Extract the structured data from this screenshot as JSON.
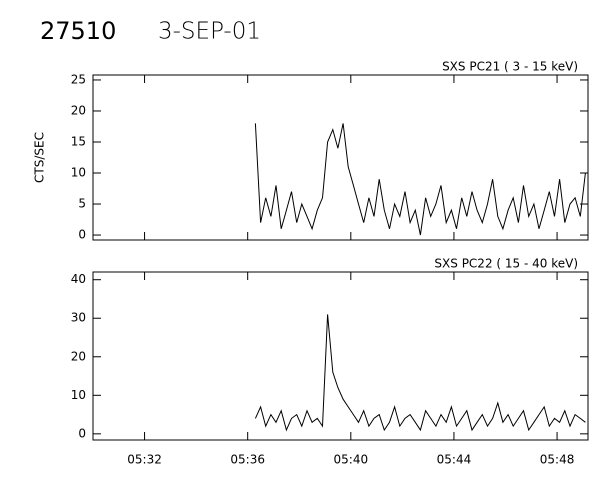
{
  "header": {
    "number": "27510",
    "date": "3-SEP-01"
  },
  "chart_data": [
    {
      "type": "line",
      "title": "SXS PC21  (  3 - 15 keV)",
      "y_label": "CTS/SEC",
      "x": [
        336.3,
        336.5,
        336.7,
        336.9,
        337.1,
        337.3,
        337.5,
        337.7,
        337.9,
        338.1,
        338.3,
        338.5,
        338.7,
        338.9,
        339.1,
        339.3,
        339.5,
        339.7,
        339.9,
        340.1,
        340.3,
        340.5,
        340.7,
        340.9,
        341.1,
        341.3,
        341.5,
        341.7,
        341.9,
        342.1,
        342.3,
        342.5,
        342.7,
        342.9,
        343.1,
        343.3,
        343.5,
        343.7,
        343.9,
        344.1,
        344.3,
        344.5,
        344.7,
        344.9,
        345.1,
        345.3,
        345.5,
        345.7,
        345.9,
        346.1,
        346.3,
        346.5,
        346.7,
        346.9,
        347.1,
        347.3,
        347.5,
        347.7,
        347.9,
        348.1,
        348.3,
        348.5,
        348.7,
        348.9,
        349.1
      ],
      "series": [
        {
          "color": "#000000",
          "values": [
            18,
            2,
            6,
            3,
            8,
            1,
            4,
            7,
            2,
            5,
            3,
            1,
            4,
            6,
            15,
            17,
            14,
            18,
            11,
            8,
            5,
            2,
            6,
            3,
            9,
            4,
            1,
            5,
            3,
            7,
            2,
            4,
            0,
            6,
            3,
            5,
            8,
            2,
            4,
            1,
            6,
            3,
            7,
            4,
            2,
            5,
            9,
            3,
            1,
            4,
            6,
            2,
            8,
            3,
            5,
            1,
            4,
            7,
            3,
            9,
            2,
            5,
            6,
            3,
            10
          ]
        }
      ],
      "xlim": [
        330,
        349.2
      ],
      "xticks": [
        332,
        336,
        340,
        344,
        348
      ],
      "ylim": [
        -0.8,
        25.8
      ],
      "yticks": [
        0,
        5,
        10,
        15,
        20,
        25
      ]
    },
    {
      "type": "line",
      "title": "SXS PC22  ( 15 - 40 keV)",
      "x": [
        336.3,
        336.5,
        336.7,
        336.9,
        337.1,
        337.3,
        337.5,
        337.7,
        337.9,
        338.1,
        338.3,
        338.5,
        338.7,
        338.9,
        339.1,
        339.3,
        339.5,
        339.7,
        339.9,
        340.1,
        340.3,
        340.5,
        340.7,
        340.9,
        341.1,
        341.3,
        341.5,
        341.7,
        341.9,
        342.1,
        342.3,
        342.5,
        342.7,
        342.9,
        343.1,
        343.3,
        343.5,
        343.7,
        343.9,
        344.1,
        344.3,
        344.5,
        344.7,
        344.9,
        345.1,
        345.3,
        345.5,
        345.7,
        345.9,
        346.1,
        346.3,
        346.5,
        346.7,
        346.9,
        347.1,
        347.3,
        347.5,
        347.7,
        347.9,
        348.1,
        348.3,
        348.5,
        348.7,
        348.9,
        349.1
      ],
      "series": [
        {
          "color": "#000000",
          "values": [
            4,
            7,
            2,
            5,
            3,
            6,
            1,
            4,
            5,
            2,
            6,
            3,
            4,
            2,
            31,
            16,
            12,
            9,
            7,
            5,
            3,
            6,
            2,
            4,
            5,
            1,
            3,
            7,
            2,
            4,
            5,
            3,
            1,
            6,
            4,
            2,
            5,
            3,
            7,
            2,
            4,
            6,
            1,
            3,
            5,
            2,
            4,
            8,
            3,
            5,
            2,
            4,
            6,
            1,
            3,
            5,
            7,
            2,
            4,
            3,
            6,
            2,
            5,
            4,
            3
          ]
        }
      ],
      "xlim": [
        330,
        349.2
      ],
      "xticks": [
        {
          "value": 332,
          "label": "05:32"
        },
        {
          "value": 336,
          "label": "05:36"
        },
        {
          "value": 340,
          "label": "05:40"
        },
        {
          "value": 344,
          "label": "05:44"
        },
        {
          "value": 348,
          "label": "05:48"
        }
      ],
      "ylim": [
        -1.6,
        42
      ],
      "yticks": [
        0,
        10,
        20,
        30,
        40
      ]
    }
  ]
}
